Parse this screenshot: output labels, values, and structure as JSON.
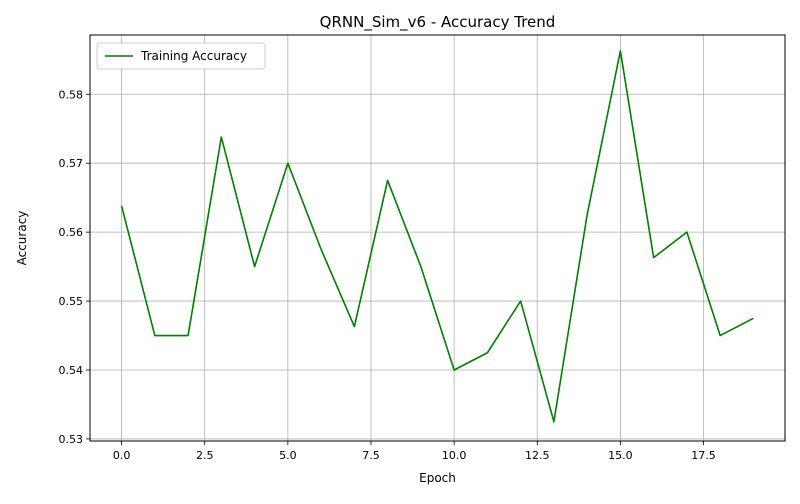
{
  "chart_data": {
    "type": "line",
    "title": "QRNN_Sim_v6 - Accuracy Trend",
    "xlabel": "Epoch",
    "ylabel": "Accuracy",
    "xlim": [
      -0.95,
      19.95
    ],
    "ylim": [
      0.5297,
      0.5886
    ],
    "xticks": [
      0.0,
      2.5,
      5.0,
      7.5,
      10.0,
      12.5,
      15.0,
      17.5
    ],
    "xtick_labels": [
      "0.0",
      "2.5",
      "5.0",
      "7.5",
      "10.0",
      "12.5",
      "15.0",
      "17.5"
    ],
    "yticks": [
      0.53,
      0.54,
      0.55,
      0.56,
      0.57,
      0.58
    ],
    "ytick_labels": [
      "0.53",
      "0.54",
      "0.55",
      "0.56",
      "0.57",
      "0.58"
    ],
    "grid": true,
    "legend_position": "upper-left",
    "series": [
      {
        "name": "Training Accuracy",
        "color": "#008000",
        "x": [
          0,
          1,
          2,
          3,
          4,
          5,
          6,
          7,
          8,
          9,
          10,
          11,
          12,
          13,
          14,
          15,
          16,
          17,
          18,
          19
        ],
        "y": [
          0.5638,
          0.545,
          0.545,
          0.5738,
          0.555,
          0.57,
          0.5575,
          0.5463,
          0.5675,
          0.555,
          0.54,
          0.5425,
          0.55,
          0.5325,
          0.5625,
          0.5863,
          0.5563,
          0.56,
          0.545,
          0.5475
        ]
      }
    ]
  }
}
